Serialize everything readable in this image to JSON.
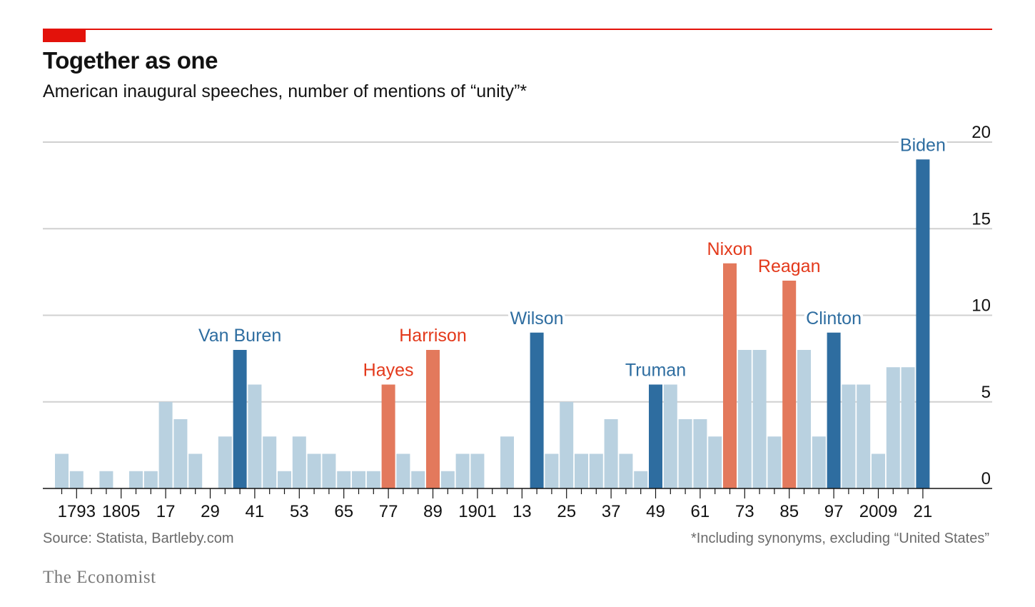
{
  "header": {
    "title": "Together as one",
    "subtitle": "American inaugural speeches, number of mentions of “unity”*"
  },
  "footer": {
    "source": "Source: Statista, Bartleby.com",
    "footnote": "*Including synonyms, excluding “United States”",
    "brand": "The Economist"
  },
  "colors": {
    "light": "#b9d1e0",
    "blue": "#2e6da0",
    "red": "#e3795c",
    "label_blue": "#2e6da0",
    "label_red": "#e3391b",
    "grid": "#d0d0d0",
    "axis": "#121212",
    "tick_text": "#121212",
    "accent": "#e3120b"
  },
  "chart_data": {
    "type": "bar",
    "title": "Together as one",
    "subtitle": "American inaugural speeches, number of mentions of “unity”*",
    "xlabel": "",
    "ylabel": "",
    "ylim": [
      0,
      20
    ],
    "yticks": [
      0,
      5,
      10,
      15,
      20
    ],
    "grid": true,
    "y_axis_side": "right",
    "x": [
      1789,
      1793,
      1797,
      1801,
      1805,
      1809,
      1813,
      1817,
      1821,
      1825,
      1829,
      1833,
      1837,
      1841,
      1845,
      1849,
      1853,
      1857,
      1861,
      1865,
      1869,
      1873,
      1877,
      1881,
      1885,
      1889,
      1893,
      1897,
      1901,
      1905,
      1909,
      1913,
      1917,
      1921,
      1925,
      1929,
      1933,
      1937,
      1941,
      1945,
      1949,
      1953,
      1957,
      1961,
      1965,
      1969,
      1973,
      1977,
      1981,
      1985,
      1989,
      1993,
      1997,
      2001,
      2005,
      2009,
      2013,
      2017,
      2021
    ],
    "values": [
      2,
      1,
      0,
      1,
      0,
      1,
      1,
      5,
      4,
      2,
      0,
      3,
      8,
      6,
      3,
      1,
      3,
      2,
      2,
      1,
      1,
      1,
      6,
      2,
      1,
      8,
      1,
      2,
      2,
      0,
      3,
      0,
      9,
      2,
      5,
      2,
      2,
      4,
      2,
      1,
      6,
      6,
      4,
      4,
      3,
      13,
      8,
      8,
      3,
      12,
      8,
      3,
      9,
      6,
      6,
      2,
      7,
      7,
      19
    ],
    "highlight": [
      {
        "x": 1837,
        "label": "Van Buren",
        "color": "blue"
      },
      {
        "x": 1877,
        "label": "Hayes",
        "color": "red"
      },
      {
        "x": 1889,
        "label": "Harrison",
        "color": "red"
      },
      {
        "x": 1917,
        "label": "Wilson",
        "color": "blue"
      },
      {
        "x": 1949,
        "label": "Truman",
        "color": "blue"
      },
      {
        "x": 1969,
        "label": "Nixon",
        "color": "red"
      },
      {
        "x": 1985,
        "label": "Reagan",
        "color": "red"
      },
      {
        "x": 1997,
        "label": "Clinton",
        "color": "blue"
      },
      {
        "x": 2021,
        "label": "Biden",
        "color": "blue"
      }
    ],
    "tick_labels": [
      {
        "x": 1793,
        "label": "1793"
      },
      {
        "x": 1805,
        "label": "1805"
      },
      {
        "x": 1817,
        "label": "17"
      },
      {
        "x": 1829,
        "label": "29"
      },
      {
        "x": 1841,
        "label": "41"
      },
      {
        "x": 1853,
        "label": "53"
      },
      {
        "x": 1865,
        "label": "65"
      },
      {
        "x": 1877,
        "label": "77"
      },
      {
        "x": 1889,
        "label": "89"
      },
      {
        "x": 1901,
        "label": "1901"
      },
      {
        "x": 1913,
        "label": "13"
      },
      {
        "x": 1925,
        "label": "25"
      },
      {
        "x": 1937,
        "label": "37"
      },
      {
        "x": 1949,
        "label": "49"
      },
      {
        "x": 1961,
        "label": "61"
      },
      {
        "x": 1973,
        "label": "73"
      },
      {
        "x": 1985,
        "label": "85"
      },
      {
        "x": 1997,
        "label": "97"
      },
      {
        "x": 2009,
        "label": "2009"
      },
      {
        "x": 2021,
        "label": "21"
      }
    ]
  }
}
